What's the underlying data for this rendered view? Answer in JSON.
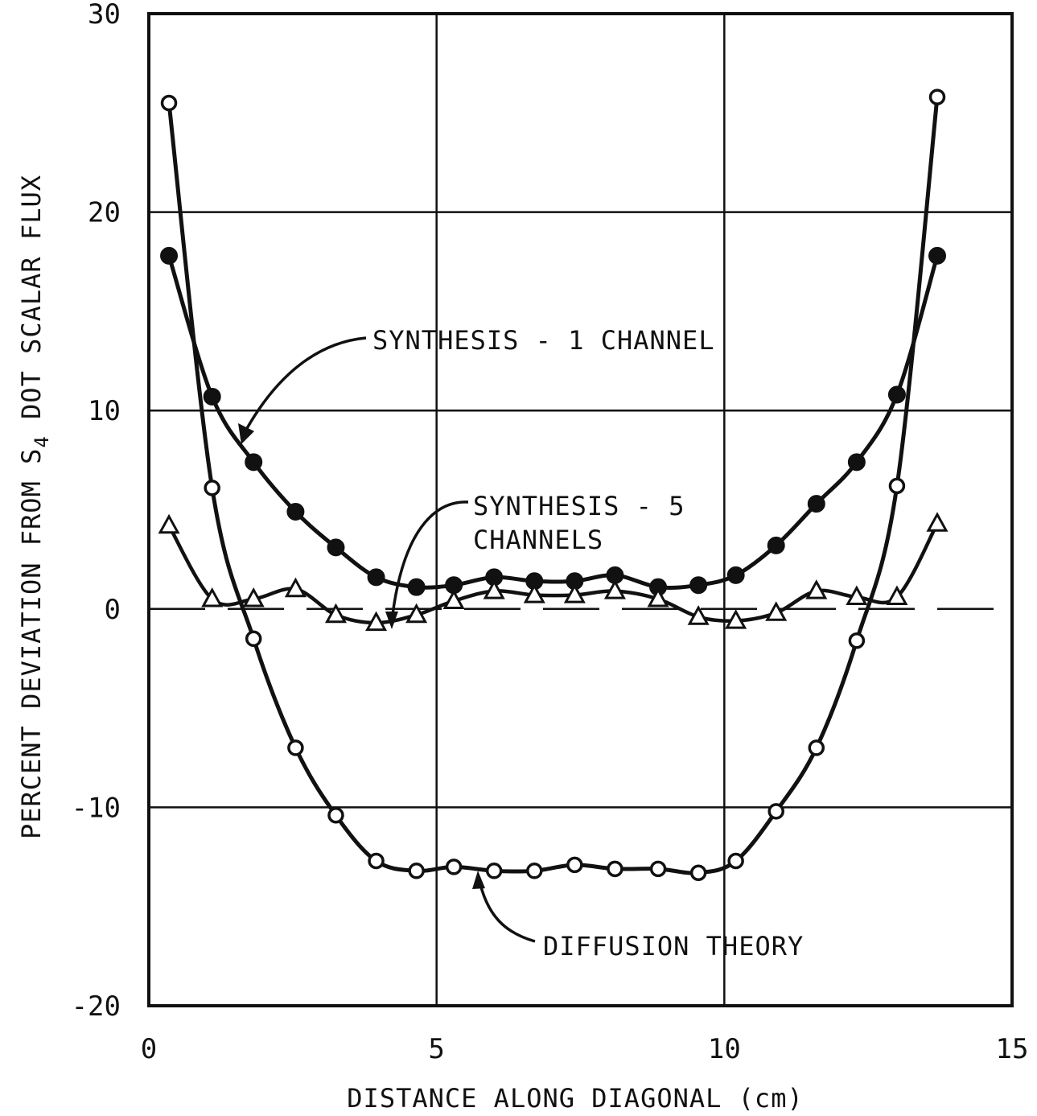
{
  "chart_data": {
    "type": "line",
    "title": "",
    "xlabel": "DISTANCE ALONG DIAGONAL (cm)",
    "ylabel_parts": [
      "PERCENT DEVIATION FROM S",
      "4",
      " DOT SCALAR FLUX"
    ],
    "xlim": [
      0,
      15
    ],
    "ylim": [
      -20,
      30
    ],
    "x_ticks": [
      "0",
      "5",
      "10",
      "15"
    ],
    "y_ticks": [
      "30",
      "20",
      "10",
      "0",
      "-10",
      "-20"
    ],
    "grid": true,
    "series": [
      {
        "name": "SYNTHESIS - 1 CHANNEL",
        "marker": "filled-circle",
        "points": [
          [
            0.35,
            17.8
          ],
          [
            1.1,
            10.7
          ],
          [
            1.82,
            7.4
          ],
          [
            2.55,
            4.9
          ],
          [
            3.25,
            3.1
          ],
          [
            3.95,
            1.6
          ],
          [
            4.65,
            1.1
          ],
          [
            5.3,
            1.2
          ],
          [
            6.0,
            1.6
          ],
          [
            6.7,
            1.4
          ],
          [
            7.4,
            1.4
          ],
          [
            8.1,
            1.7
          ],
          [
            8.85,
            1.1
          ],
          [
            9.55,
            1.2
          ],
          [
            10.2,
            1.7
          ],
          [
            10.9,
            3.2
          ],
          [
            11.6,
            5.3
          ],
          [
            12.3,
            7.4
          ],
          [
            13.0,
            10.8
          ],
          [
            13.7,
            17.8
          ]
        ]
      },
      {
        "name": "SYNTHESIS - 5 CHANNELS",
        "marker": "open-triangle",
        "points": [
          [
            0.35,
            4.2
          ],
          [
            1.1,
            0.5
          ],
          [
            1.82,
            0.5
          ],
          [
            2.55,
            1.0
          ],
          [
            3.25,
            -0.3
          ],
          [
            3.95,
            -0.7
          ],
          [
            4.65,
            -0.3
          ],
          [
            5.3,
            0.4
          ],
          [
            6.0,
            0.9
          ],
          [
            6.7,
            0.7
          ],
          [
            7.4,
            0.7
          ],
          [
            8.1,
            0.9
          ],
          [
            8.85,
            0.5
          ],
          [
            9.55,
            -0.4
          ],
          [
            10.2,
            -0.6
          ],
          [
            10.9,
            -0.2
          ],
          [
            11.6,
            0.9
          ],
          [
            12.3,
            0.6
          ],
          [
            13.0,
            0.6
          ],
          [
            13.7,
            4.3
          ]
        ]
      },
      {
        "name": "DIFFUSION THEORY",
        "marker": "open-circle",
        "points": [
          [
            0.35,
            25.5
          ],
          [
            1.1,
            6.1
          ],
          [
            1.82,
            -1.5
          ],
          [
            2.55,
            -7.0
          ],
          [
            3.25,
            -10.4
          ],
          [
            3.95,
            -12.7
          ],
          [
            4.65,
            -13.2
          ],
          [
            5.3,
            -13.0
          ],
          [
            6.0,
            -13.2
          ],
          [
            6.7,
            -13.2
          ],
          [
            7.4,
            -12.9
          ],
          [
            8.1,
            -13.1
          ],
          [
            8.85,
            -13.1
          ],
          [
            9.55,
            -13.3
          ],
          [
            10.2,
            -12.7
          ],
          [
            10.9,
            -10.2
          ],
          [
            11.6,
            -7.0
          ],
          [
            12.3,
            -1.6
          ],
          [
            13.0,
            6.2
          ],
          [
            13.7,
            25.8
          ]
        ]
      }
    ],
    "annotations": [
      {
        "text": "SYNTHESIS - 1 CHANNEL",
        "series": "SYNTHESIS - 1 CHANNEL"
      },
      {
        "text": "SYNTHESIS - 5",
        "series": "SYNTHESIS - 5 CHANNELS"
      },
      {
        "text": "CHANNELS",
        "series": "SYNTHESIS - 5 CHANNELS"
      },
      {
        "text": "DIFFUSION THEORY",
        "series": "DIFFUSION THEORY"
      }
    ]
  }
}
